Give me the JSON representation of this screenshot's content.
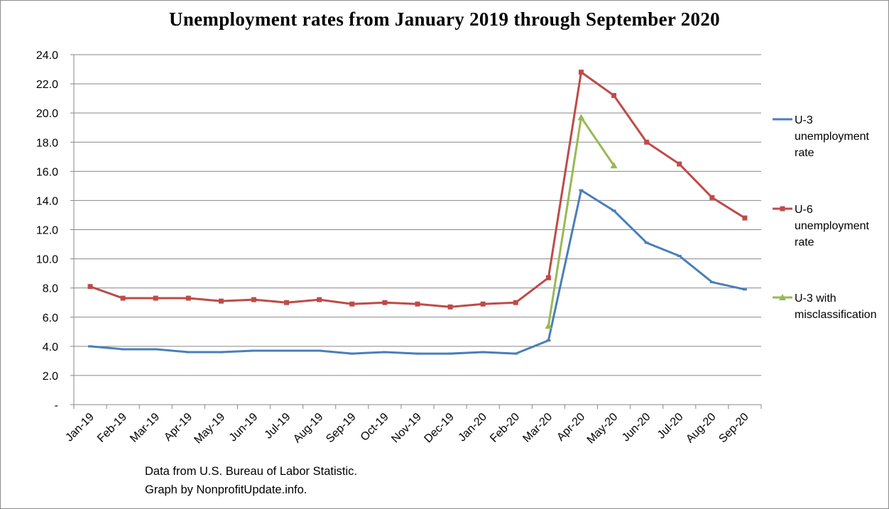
{
  "chart_data": {
    "type": "line",
    "title": "Unemployment rates from January 2019 through September 2020",
    "xlabel": "",
    "ylabel": "",
    "categories": [
      "Jan-19",
      "Feb-19",
      "Mar-19",
      "Apr-19",
      "May-19",
      "Jun-19",
      "Jul-19",
      "Aug-19",
      "Sep-19",
      "Oct-19",
      "Nov-19",
      "Dec-19",
      "Jan-20",
      "Feb-20",
      "Mar-20",
      "Apr-20",
      "May-20",
      "Jun-20",
      "Jul-20",
      "Aug-20",
      "Sep-20"
    ],
    "ylim": [
      0,
      24
    ],
    "yticks": [
      "-",
      "2.0",
      "4.0",
      "6.0",
      "8.0",
      "10.0",
      "12.0",
      "14.0",
      "16.0",
      "18.0",
      "20.0",
      "22.0",
      "24.0"
    ],
    "grid": "horizontal",
    "legend_position": "right",
    "series": [
      {
        "name": "U-3 unemployment rate",
        "legend_lines": [
          "U-3",
          "unemployment",
          "rate"
        ],
        "color": "#4a7ebb",
        "marker": "dash",
        "values": [
          4.0,
          3.8,
          3.8,
          3.6,
          3.6,
          3.7,
          3.7,
          3.7,
          3.5,
          3.6,
          3.5,
          3.5,
          3.6,
          3.5,
          4.4,
          14.7,
          13.3,
          11.1,
          10.2,
          8.4,
          7.9
        ]
      },
      {
        "name": "U-6 unemployment rate",
        "legend_lines": [
          "U-6",
          "unemployment",
          "rate"
        ],
        "color": "#be4b48",
        "marker": "square",
        "values": [
          8.1,
          7.3,
          7.3,
          7.3,
          7.1,
          7.2,
          7.0,
          7.2,
          6.9,
          7.0,
          6.9,
          6.7,
          6.9,
          7.0,
          8.7,
          22.8,
          21.2,
          18.0,
          16.5,
          14.2,
          12.8
        ]
      },
      {
        "name": "U-3 with misclassification",
        "legend_lines": [
          "U-3 with",
          "misclassification"
        ],
        "color": "#98b954",
        "marker": "triangle",
        "values": [
          null,
          null,
          null,
          null,
          null,
          null,
          null,
          null,
          null,
          null,
          null,
          null,
          null,
          null,
          5.4,
          19.7,
          16.4,
          null,
          null,
          null,
          null
        ]
      }
    ]
  },
  "notes": {
    "line1": "Data from U.S. Bureau of Labor Statistic.",
    "line2": "Graph by NonprofitUpdate.info."
  }
}
